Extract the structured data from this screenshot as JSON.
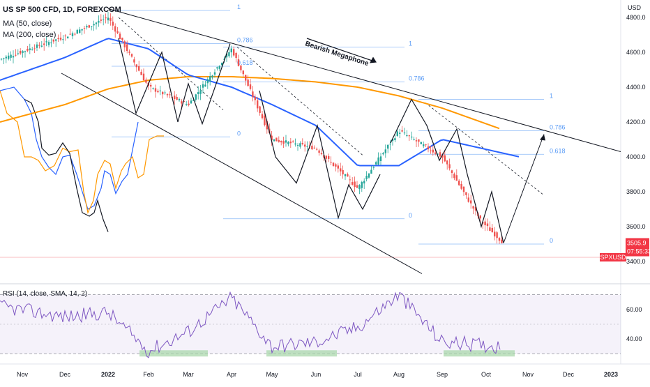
{
  "header": {
    "title": "US SP 500 CFD, 1D, FOREXCOM",
    "ma50": "MA (50, close)",
    "ma200": "MA (200, close)"
  },
  "price_axis": {
    "unit": "USD",
    "ticks": [
      "4800.0",
      "4600.0",
      "4400.0",
      "4200.0",
      "4000.0",
      "3800.0",
      "3600.0",
      "3400.0"
    ],
    "symbol_badge": "SPXUSD",
    "last_price": "3505.9",
    "countdown": "07:55:33"
  },
  "rsi": {
    "label": "RSI (14, close, SMA, 14, 2)",
    "ticks": [
      "60.00",
      "40.00"
    ]
  },
  "time_axis": [
    "Nov",
    "Dec",
    "2022",
    "Feb",
    "Mar",
    "Apr",
    "May",
    "Jun",
    "Jul",
    "Aug",
    "Sep",
    "Oct",
    "Nov",
    "Dec",
    "2023"
  ],
  "annotation": "Bearish Megaphone",
  "fib_labels": {
    "first": [
      "1",
      "0.786",
      "0.618",
      "0"
    ],
    "second": [
      "1",
      "0.786",
      "0"
    ],
    "third": [
      "1",
      "0.786",
      "0.618",
      "0"
    ]
  },
  "colors": {
    "up": "#26a69a",
    "down": "#ef5350",
    "ma50": "#2962ff",
    "ma200": "#ff9800",
    "rsi_line": "#7e57c2",
    "fib": "#5b9cf6",
    "badge": "#f23645"
  },
  "chart_data": {
    "type": "candlestick",
    "ylim": [
      3300,
      4900
    ],
    "x_ticks": [
      "Nov",
      "Dec",
      "2022",
      "Feb",
      "Mar",
      "Apr",
      "May",
      "Jun",
      "Jul",
      "Aug",
      "Sep",
      "Oct",
      "Nov",
      "Dec",
      "2023"
    ],
    "price_anchors": [
      {
        "x": "Nov",
        "y": 4560
      },
      {
        "x": "Dec",
        "y": 4690
      },
      {
        "x": "2022",
        "y": 4800
      },
      {
        "x": "Feb",
        "y": 4400
      },
      {
        "x": "Mar",
        "y": 4300
      },
      {
        "x": "Apr",
        "y": 4620
      },
      {
        "x": "May",
        "y": 4100
      },
      {
        "x": "Jun",
        "y": 4050
      },
      {
        "x": "Jul",
        "y": 3820
      },
      {
        "x": "Aug",
        "y": 4150
      },
      {
        "x": "Sep",
        "y": 4000
      },
      {
        "x": "Oct",
        "y": 3630
      },
      {
        "x": "Oct",
        "y": 3506
      }
    ],
    "projection": [
      {
        "x": "Oct",
        "y": 3506
      },
      {
        "x": "Nov",
        "y": 4130
      }
    ],
    "ma50_anchors": [
      {
        "x": "Nov",
        "y": 4440
      },
      {
        "x": "Dec",
        "y": 4570
      },
      {
        "x": "2022",
        "y": 4680
      },
      {
        "x": "Feb",
        "y": 4620
      },
      {
        "x": "Mar",
        "y": 4470
      },
      {
        "x": "Apr",
        "y": 4400
      },
      {
        "x": "May",
        "y": 4300
      },
      {
        "x": "Jun",
        "y": 4180
      },
      {
        "x": "Jul",
        "y": 3950
      },
      {
        "x": "Aug",
        "y": 3950
      },
      {
        "x": "Sep",
        "y": 4100
      },
      {
        "x": "Oct",
        "y": 4000
      }
    ],
    "ma200_anchors": [
      {
        "x": "Nov",
        "y": 4200
      },
      {
        "x": "Dec",
        "y": 4300
      },
      {
        "x": "2022",
        "y": 4390
      },
      {
        "x": "Feb",
        "y": 4440
      },
      {
        "x": "Mar",
        "y": 4460
      },
      {
        "x": "Apr",
        "y": 4460
      },
      {
        "x": "May",
        "y": 4450
      },
      {
        "x": "Jun",
        "y": 4430
      },
      {
        "x": "Jul",
        "y": 4400
      },
      {
        "x": "Aug",
        "y": 4350
      },
      {
        "x": "Sep",
        "y": 4280
      },
      {
        "x": "Oct",
        "y": 4160
      }
    ],
    "rsi_ylim": [
      25,
      75
    ],
    "rsi_anchors": [
      {
        "x": "Nov",
        "y": 62
      },
      {
        "x": "Dec",
        "y": 55
      },
      {
        "x": "2022",
        "y": 58
      },
      {
        "x": "Feb",
        "y": 32
      },
      {
        "x": "Mar",
        "y": 45
      },
      {
        "x": "Apr",
        "y": 68
      },
      {
        "x": "May",
        "y": 35
      },
      {
        "x": "Jun",
        "y": 38
      },
      {
        "x": "Jul",
        "y": 48
      },
      {
        "x": "Aug",
        "y": 70
      },
      {
        "x": "Sep",
        "y": 38
      },
      {
        "x": "Oct",
        "y": 35
      }
    ]
  }
}
